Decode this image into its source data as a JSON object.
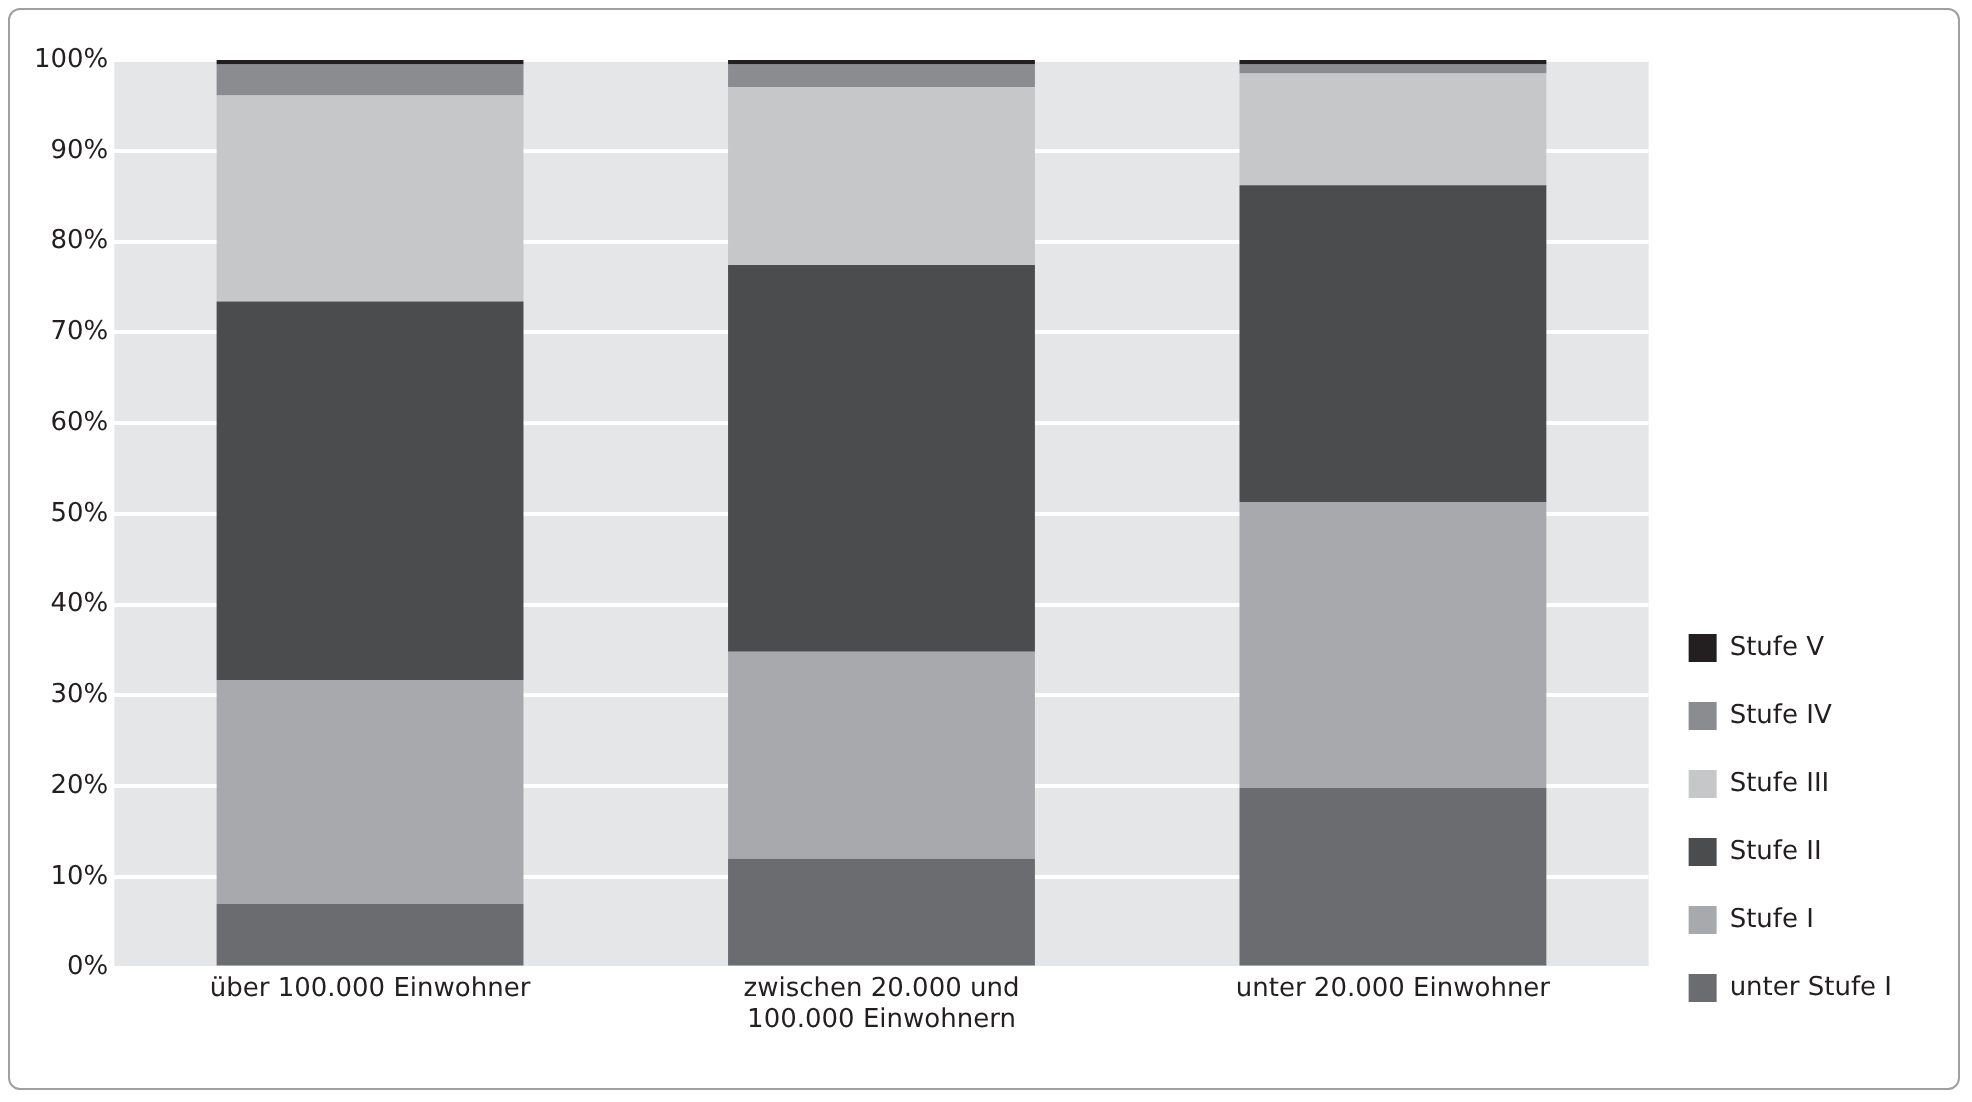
{
  "chart_data": {
    "type": "bar",
    "stacked": true,
    "categories": [
      "über 100.000 Einwohner",
      "zwischen 20.000 und 100.000 Einwohnern",
      "unter 20.000 Einwohner"
    ],
    "series": [
      {
        "name": "unter Stufe I",
        "color": "#6b6c70",
        "values": [
          7,
          12,
          19.8
        ]
      },
      {
        "name": "Stufe I",
        "color": "#a8a9ac",
        "values": [
          24.7,
          22.8,
          31.5
        ]
      },
      {
        "name": "Stufe II",
        "color": "#4b4c4e",
        "values": [
          41.7,
          42.6,
          34.9
        ]
      },
      {
        "name": "Stufe III",
        "color": "#c6c7c9",
        "values": [
          22.7,
          19.6,
          12.3
        ]
      },
      {
        "name": "Stufe IV",
        "color": "#8b8c8f",
        "values": [
          3.4,
          2.5,
          1
        ]
      },
      {
        "name": "Stufe V",
        "color": "#231f20",
        "values": [
          0.5,
          0.5,
          0.5
        ]
      }
    ],
    "ylim": [
      0,
      100
    ],
    "yticks": [
      {
        "value": 0,
        "label": "0%"
      },
      {
        "value": 10,
        "label": "10%"
      },
      {
        "value": 20,
        "label": "20%"
      },
      {
        "value": 30,
        "label": "30%"
      },
      {
        "value": 40,
        "label": "40%"
      },
      {
        "value": 50,
        "label": "50%"
      },
      {
        "value": 60,
        "label": "60%"
      },
      {
        "value": 70,
        "label": "70%"
      },
      {
        "value": 80,
        "label": "80%"
      },
      {
        "value": 90,
        "label": "90%"
      },
      {
        "value": 100,
        "label": "100%"
      }
    ],
    "grid": "y",
    "legend": "right"
  }
}
